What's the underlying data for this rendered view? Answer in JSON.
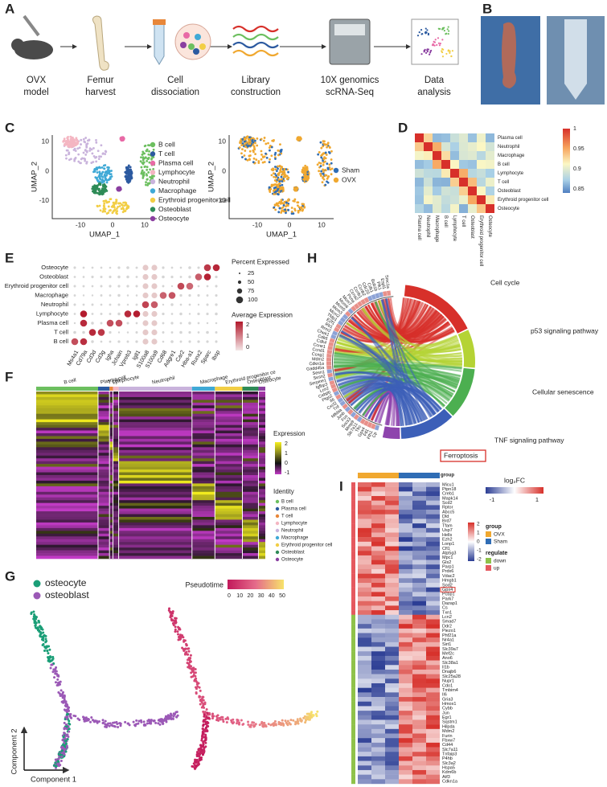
{
  "figure": {
    "panel_labels": [
      "A",
      "B",
      "C",
      "D",
      "E",
      "F",
      "G",
      "H",
      "I"
    ],
    "a": {
      "steps": [
        {
          "lines": [
            "OVX",
            "model"
          ]
        },
        {
          "lines": [
            "Femur",
            "harvest"
          ]
        },
        {
          "lines": [
            "Cell",
            "dissociation"
          ]
        },
        {
          "lines": [
            "Library",
            "construction"
          ]
        },
        {
          "lines": [
            "10X genomics",
            "scRNA-Seq"
          ]
        },
        {
          "lines": [
            "Data",
            "analysis"
          ]
        }
      ]
    },
    "c": {
      "x_label": "UMAP_1",
      "y_label": "UMAP_2",
      "x_ticks": [
        -10,
        0,
        10
      ],
      "y_ticks": [
        10,
        0,
        -10
      ],
      "cell_types": [
        {
          "name": "B cell",
          "color": "#6cbf5f"
        },
        {
          "name": "T cell",
          "color": "#2c5aa0"
        },
        {
          "name": "Plasma cell",
          "color": "#e86aa6"
        },
        {
          "name": "Lymphocyte",
          "color": "#f4b6c2"
        },
        {
          "name": "Neutrophil",
          "color": "#c9b3dc"
        },
        {
          "name": "Macrophage",
          "color": "#3fa9d6"
        },
        {
          "name": "Erythroid progenitor cell",
          "color": "#f2ce45"
        },
        {
          "name": "Osteoblast",
          "color": "#2e8b57"
        },
        {
          "name": "Osteocyte",
          "color": "#8a3fa0"
        }
      ],
      "groups": [
        {
          "name": "Sham",
          "color": "#2f6db5"
        },
        {
          "name": "OVX",
          "color": "#f0a830"
        }
      ]
    },
    "d": {
      "labels": [
        "Plasma cell",
        "Neutrophil",
        "Macrophage",
        "B cell",
        "Lymphocyte",
        "T cell",
        "Osteoblast",
        "Erythroid progenitor cell",
        "Osteocyte"
      ],
      "scale_ticks": [
        1,
        0.95,
        0.9,
        0.85
      ]
    },
    "e": {
      "rows": [
        "Osteocyte",
        "Osteoblast",
        "Erythroid progenitor cell",
        "Macrophage",
        "Neutrophil",
        "Lymphocyte",
        "Plasma cell",
        "T cell",
        "B cell"
      ],
      "genes": [
        "Ms4a1",
        "Cd79a",
        "Cd3d",
        "Cd3g",
        "Igha",
        "Jchain",
        "Vpreb3",
        "Igll1",
        "S100a8",
        "S100a9",
        "Cd68",
        "Adgre1",
        "Car2",
        "Hba-a1",
        "Runx2",
        "Sparc",
        "Ibsp"
      ],
      "size_title": "Percent Expressed",
      "size_ticks": [
        25,
        50,
        75,
        100
      ],
      "color_title": "Average Expression",
      "color_ticks": [
        2,
        1,
        0
      ]
    },
    "f": {
      "clusters": [
        "B cell",
        "Plasma cell",
        "T cell",
        "Lymphocyte",
        "Neutrophil",
        "Macrophage",
        "Erythroid progenitor ce",
        "Osteoblast",
        "Osteocyte"
      ],
      "expression_title": "Expression",
      "expression_ticks": [
        2,
        1,
        0,
        -1
      ],
      "identity_title": "Identity",
      "identity": [
        {
          "name": "B cell",
          "color": "#6cbf5f"
        },
        {
          "name": "Plasma cell",
          "color": "#2c5aa0"
        },
        {
          "name": "T cell",
          "color": "#e8873a"
        },
        {
          "name": "Lymphocyte",
          "color": "#f4b6c2"
        },
        {
          "name": "Neutrophil",
          "color": "#c9b3dc"
        },
        {
          "name": "Macrophage",
          "color": "#3fa9d6"
        },
        {
          "name": "Erythroid progenitor cell",
          "color": "#f2ce45"
        },
        {
          "name": "Osteoblast",
          "color": "#2e8b57"
        },
        {
          "name": "Osteocyte",
          "color": "#8a3fa0"
        }
      ]
    },
    "g": {
      "legend": [
        {
          "name": "osteocyte",
          "color": "#1a9e77"
        },
        {
          "name": "osteoblast",
          "color": "#9b59b6"
        }
      ],
      "x_label": "Component 1",
      "y_label": "Component 2",
      "pseudotime_title": "Pseudotime",
      "pseudotime_ticks": [
        0,
        10,
        20,
        30,
        40,
        50
      ]
    },
    "h": {
      "pathways": [
        {
          "name": "Cell cycle",
          "color": "#d7302a"
        },
        {
          "name": "p53 signaling pathway",
          "color": "#b5d334"
        },
        {
          "name": "Cellular senescence",
          "color": "#4caf50"
        },
        {
          "name": "TNF signaling pathway",
          "color": "#3c5fb8"
        },
        {
          "name": "Ferroptosis",
          "color": "#8e44ad"
        }
      ],
      "genes": [
        "Cp",
        "Fth1",
        "Ftl1",
        "Gpx4",
        "Tfrc",
        "Slc7a11",
        "Mmp9",
        "Socs3",
        "Fos",
        "Junb",
        "Nfkbia",
        "Tnf",
        "Cxcl2",
        "Il6",
        "Ptgs2",
        "Cebpb",
        "Lcn2",
        "Igfbp3",
        "Serpine1",
        "Sesn2",
        "Sesn1",
        "Gadd45a",
        "Cdkn1a",
        "Mdm2",
        "Ccng1",
        "Ccnd1",
        "Ccne1",
        "Cdk4",
        "Cdk6",
        "Chek1",
        "Rrm2",
        "Rb1",
        "E2f1",
        "Tfdp1",
        "Mcm2",
        "Mcm3",
        "Mcm5",
        "Mcm6",
        "Mcm7",
        "Pcna",
        "Ccna2",
        "Ccnb1",
        "Ccnb2",
        "Cdc20",
        "Cdk1",
        "Bub1b",
        "Plk1",
        "Espl1",
        "Smc1a"
      ],
      "scale_title": "log₂FC",
      "scale_ticks": [
        -1,
        1
      ]
    },
    "i": {
      "annotation_label": "group",
      "genes": [
        "Micu1",
        "Ptpn18",
        "Creb1",
        "Mapk14",
        "Scd2",
        "Rptor",
        "Abcc5",
        "Dld",
        "Brd7",
        "Tfam",
        "Usp7",
        "Hells",
        "Ezh2",
        "Lonp1",
        "Cfl1",
        "Atp5g3",
        "Mpc1",
        "Gls2",
        "Parp1",
        "Prdx6",
        "Vdac2",
        "Hmgb1",
        "Sod2",
        "Gpx4",
        "Pcbp1",
        "Park7",
        "Dazap1",
        "Cs",
        "Txn1",
        "Lcn2",
        "Smad7",
        "Ddr2",
        "Piezo1",
        "Phf21a",
        "Nr4a1",
        "Sirt1",
        "Slc39a7",
        "Mef2c",
        "Ano6",
        "Slc38a1",
        "Il1b",
        "Dnajb6",
        "Slc25a28",
        "Nupr1",
        "Cdo1",
        "Tmbim4",
        "Il6",
        "Gria3",
        "Hmox1",
        "Cybb",
        "Jun",
        "Egr1",
        "Sqstm1",
        "Hilpda",
        "Mdm2",
        "Furin",
        "Fbxw7",
        "Cd44",
        "Slc7a11",
        "Tnfaip3",
        "P4hb",
        "Slc3a2",
        "Hspa5",
        "Kdm6b",
        "Atf3",
        "Cdkn1a"
      ],
      "scale_ticks": [
        2,
        1,
        0,
        -1,
        -2
      ],
      "group_title": "group",
      "groups": [
        {
          "name": "OVX",
          "color": "#f0a830"
        },
        {
          "name": "Sham",
          "color": "#2f6db5"
        }
      ],
      "regulate_title": "regulate",
      "regulate": [
        {
          "name": "down",
          "color": "#8fc24a"
        },
        {
          "name": "up",
          "color": "#e5595f"
        }
      ]
    }
  }
}
